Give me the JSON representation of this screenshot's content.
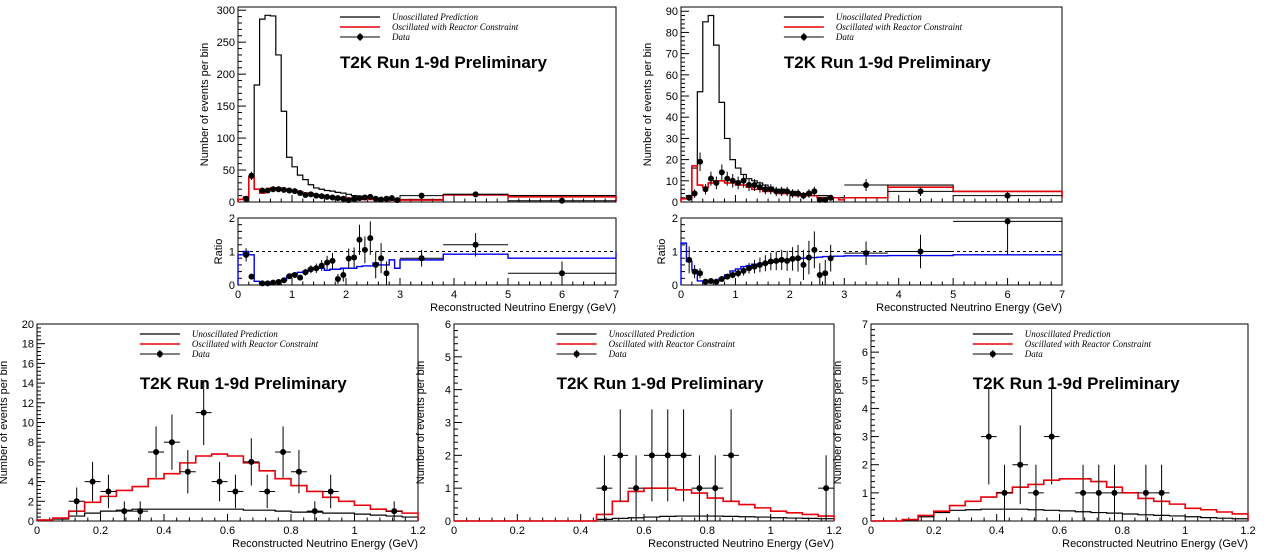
{
  "colors": {
    "unoscillated": "#000000",
    "oscillated": "#e8000b",
    "data": "#000000",
    "ratio_line": "#0000ee",
    "unity_line": "#000000"
  },
  "legend": {
    "unoscillated": "Unoscillated Prediction",
    "oscillated": "Oscillated with Reactor Constraint",
    "data": "Data"
  },
  "banner": "T2K Run 1-9d Preliminary",
  "chart_data": [
    {
      "type": "histogram",
      "xlabel": "",
      "ylabel": "Number of events per bin",
      "xlim": [
        0,
        7
      ],
      "ylim": [
        0,
        305
      ],
      "yticks": [
        0,
        50,
        100,
        150,
        200,
        250,
        300
      ],
      "xticks": [],
      "bin_edges": [
        0,
        0.1,
        0.2,
        0.3,
        0.4,
        0.5,
        0.6,
        0.7,
        0.8,
        0.9,
        1.0,
        1.1,
        1.2,
        1.3,
        1.4,
        1.5,
        1.6,
        1.7,
        1.8,
        1.9,
        2.0,
        2.1,
        2.2,
        2.3,
        2.4,
        2.5,
        2.6,
        2.7,
        2.8,
        2.9,
        3.0,
        3.8,
        5.0,
        7.0
      ],
      "unoscillated": [
        4,
        6,
        40,
        183,
        286,
        292,
        291,
        230,
        142,
        70,
        55,
        42,
        35,
        27,
        22,
        20,
        18,
        17,
        15,
        14,
        12,
        10,
        9,
        7,
        7,
        6,
        5,
        5,
        4,
        4,
        4,
        12,
        10,
        1
      ],
      "oscillated": [
        4,
        8,
        38,
        20,
        14,
        18,
        22,
        22,
        20,
        18,
        18,
        16,
        14,
        13,
        11,
        10,
        8,
        8,
        7,
        7,
        6,
        5,
        5,
        4,
        4,
        4,
        3,
        3,
        3,
        2,
        3,
        11,
        8,
        1
      ],
      "data": {
        "x": [
          0.15,
          0.25,
          0.45,
          0.55,
          0.65,
          0.75,
          0.85,
          0.95,
          1.05,
          1.15,
          1.25,
          1.35,
          1.45,
          1.55,
          1.65,
          1.75,
          1.85,
          1.95,
          2.05,
          2.15,
          2.25,
          2.35,
          2.45,
          2.55,
          2.65,
          2.75,
          2.85,
          2.95,
          3.4,
          4.4,
          6.0
        ],
        "y": [
          5,
          41,
          18,
          18,
          20,
          20,
          19,
          18,
          17,
          14,
          11,
          12,
          10,
          9,
          8,
          7,
          6,
          5,
          3,
          5,
          6,
          7,
          8,
          5,
          4,
          5,
          6,
          3,
          10,
          12,
          2
        ]
      }
    },
    {
      "type": "ratio",
      "xlabel": "Reconstructed Neutrino Energy (GeV)",
      "ylabel": "Ratio",
      "xlim": [
        0,
        7
      ],
      "ylim": [
        0,
        2
      ],
      "yticks": [
        0,
        1,
        2
      ],
      "xticks": [
        0,
        1,
        2,
        3,
        4,
        5,
        6,
        7
      ],
      "bin_edges": [
        0,
        0.1,
        0.2,
        0.3,
        0.4,
        0.5,
        0.6,
        0.7,
        0.8,
        0.9,
        1.0,
        1.1,
        1.2,
        1.3,
        1.4,
        1.5,
        1.6,
        1.7,
        1.8,
        1.9,
        2.0,
        2.1,
        2.2,
        2.3,
        2.4,
        2.5,
        2.6,
        2.7,
        2.8,
        2.9,
        3.0,
        3.8,
        5.0,
        7.0
      ],
      "ratio": [
        0.9,
        1.0,
        0.9,
        0.11,
        0.05,
        0.06,
        0.08,
        0.1,
        0.14,
        0.26,
        0.33,
        0.38,
        0.4,
        0.48,
        0.5,
        0.5,
        0.44,
        0.47,
        0.47,
        0.5,
        0.5,
        0.5,
        0.55,
        0.57,
        0.57,
        0.66,
        0.6,
        0.6,
        0.75,
        0.5,
        0.75,
        0.92,
        0.8,
        1.0
      ],
      "data": {
        "x": [
          0.15,
          0.25,
          0.45,
          0.55,
          0.65,
          0.75,
          0.85,
          0.95,
          1.05,
          1.15,
          1.25,
          1.35,
          1.45,
          1.55,
          1.65,
          1.75,
          1.85,
          1.95,
          2.05,
          2.15,
          2.25,
          2.35,
          2.45,
          2.55,
          2.65,
          2.75,
          3.4,
          4.4,
          6.0
        ],
        "y": [
          0.9,
          0.25,
          0.05,
          0.05,
          0.07,
          0.09,
          0.14,
          0.26,
          0.3,
          0.22,
          0.38,
          0.47,
          0.5,
          0.58,
          0.67,
          0.72,
          0.18,
          0.3,
          0.79,
          0.82,
          1.35,
          1.05,
          1.4,
          0.6,
          0.8,
          0.35,
          0.8,
          1.2,
          0.35
        ],
        "yerr": [
          0.2,
          0.05,
          0.02,
          0.02,
          0.02,
          0.03,
          0.04,
          0.05,
          0.07,
          0.08,
          0.1,
          0.12,
          0.14,
          0.16,
          0.2,
          0.24,
          0.15,
          0.2,
          0.3,
          0.3,
          0.45,
          0.4,
          0.5,
          0.4,
          0.45,
          0.35,
          0.25,
          0.35,
          0.35
        ]
      }
    },
    {
      "type": "histogram",
      "xlabel": "",
      "ylabel": "Number of events per bin",
      "xlim": [
        0,
        7
      ],
      "ylim": [
        0,
        92
      ],
      "yticks": [
        0,
        10,
        20,
        30,
        40,
        50,
        60,
        70,
        80,
        90
      ],
      "xticks": [],
      "bin_edges": [
        0,
        0.1,
        0.2,
        0.3,
        0.4,
        0.5,
        0.6,
        0.7,
        0.8,
        0.9,
        1.0,
        1.1,
        1.2,
        1.3,
        1.4,
        1.5,
        1.6,
        1.7,
        1.8,
        1.9,
        2.0,
        2.1,
        2.2,
        2.3,
        2.4,
        2.5,
        2.6,
        2.7,
        2.8,
        2.9,
        3.0,
        3.8,
        5.0,
        7.0
      ],
      "unoscillated": [
        1.5,
        3,
        16,
        52,
        85,
        88,
        74,
        47,
        30,
        20,
        16,
        13,
        11,
        10,
        9,
        8,
        7,
        6,
        6,
        5,
        5,
        4,
        4,
        4,
        3,
        3,
        3,
        2,
        2,
        2,
        2,
        8,
        5,
        2
      ],
      "oscillated": [
        1.5,
        2,
        17,
        8,
        7,
        9,
        10,
        10,
        9,
        9,
        8,
        8,
        7,
        6,
        6,
        5,
        5,
        5,
        4,
        4,
        4,
        3,
        3,
        3,
        3,
        2,
        2,
        2,
        2,
        1,
        2,
        7,
        5,
        2
      ],
      "data": {
        "x": [
          0.15,
          0.25,
          0.35,
          0.45,
          0.55,
          0.65,
          0.75,
          0.85,
          0.95,
          1.05,
          1.15,
          1.25,
          1.35,
          1.45,
          1.55,
          1.65,
          1.75,
          1.85,
          1.95,
          2.05,
          2.15,
          2.25,
          2.35,
          2.45,
          2.55,
          2.65,
          2.75,
          3.4,
          4.4,
          6.0
        ],
        "y": [
          2,
          4,
          19,
          6,
          11,
          9,
          14,
          11,
          10,
          9,
          10,
          8,
          8,
          7,
          6,
          6,
          5,
          5,
          5,
          4,
          4,
          3,
          4,
          5,
          1,
          1,
          2,
          8,
          5,
          3
        ],
        "yerr": [
          1.4,
          2,
          4.4,
          2.4,
          3.3,
          3,
          3.7,
          3.3,
          3.2,
          3,
          3.2,
          2.8,
          2.8,
          2.6,
          2.4,
          2.4,
          2.2,
          2.2,
          2.2,
          2,
          2,
          1.7,
          2,
          2.2,
          1,
          1,
          1.4,
          2.8,
          2.2,
          1.7
        ]
      }
    },
    {
      "type": "ratio",
      "xlabel": "Reconstructed Neutrino Energy (GeV)",
      "ylabel": "Ratio",
      "xlim": [
        0,
        7
      ],
      "ylim": [
        0,
        2
      ],
      "yticks": [
        0,
        1,
        2
      ],
      "xticks": [
        0,
        1,
        2,
        3,
        4,
        5,
        6,
        7
      ],
      "bin_edges": [
        0,
        0.1,
        0.2,
        0.3,
        0.4,
        0.5,
        0.6,
        0.7,
        0.8,
        0.9,
        1.0,
        1.1,
        1.2,
        1.3,
        1.4,
        1.5,
        1.6,
        1.7,
        1.8,
        1.9,
        2.0,
        2.1,
        2.2,
        2.3,
        2.4,
        2.5,
        2.6,
        2.7,
        2.8,
        2.9,
        3.0,
        3.8,
        5.0,
        7.0
      ],
      "ratio": [
        1.25,
        0.7,
        0.45,
        0.12,
        0.07,
        0.1,
        0.13,
        0.2,
        0.3,
        0.42,
        0.48,
        0.55,
        0.58,
        0.62,
        0.63,
        0.65,
        0.68,
        0.7,
        0.72,
        0.75,
        0.78,
        0.78,
        0.8,
        0.82,
        0.82,
        0.83,
        0.85,
        0.85,
        0.86,
        0.86,
        0.87,
        0.88,
        0.9,
        0.9
      ],
      "data": {
        "x": [
          0.15,
          0.25,
          0.35,
          0.45,
          0.55,
          0.65,
          0.75,
          0.85,
          0.95,
          1.05,
          1.15,
          1.25,
          1.35,
          1.45,
          1.55,
          1.65,
          1.75,
          1.85,
          1.95,
          2.05,
          2.15,
          2.25,
          2.35,
          2.45,
          2.55,
          2.65,
          2.75,
          3.4,
          4.4,
          6.0
        ],
        "y": [
          0.75,
          0.4,
          0.35,
          0.1,
          0.12,
          0.1,
          0.18,
          0.25,
          0.3,
          0.35,
          0.42,
          0.5,
          0.55,
          0.6,
          0.65,
          0.7,
          0.72,
          0.75,
          0.72,
          0.78,
          0.8,
          0.6,
          0.82,
          1.05,
          0.3,
          0.35,
          0.8,
          0.95,
          1.0,
          1.9
        ],
        "yerr": [
          0.4,
          0.2,
          0.15,
          0.05,
          0.05,
          0.05,
          0.06,
          0.08,
          0.1,
          0.12,
          0.14,
          0.16,
          0.2,
          0.22,
          0.24,
          0.26,
          0.28,
          0.3,
          0.3,
          0.35,
          0.4,
          0.45,
          0.5,
          0.55,
          0.35,
          0.4,
          0.4,
          0.35,
          0.5,
          1.0
        ]
      }
    },
    {
      "type": "histogram",
      "xlabel": "Reconstructed Neutrino Energy (GeV)",
      "ylabel": "Number of events per bin",
      "xlim": [
        0,
        1.2
      ],
      "ylim": [
        0,
        20
      ],
      "yticks": [
        0,
        2,
        4,
        6,
        8,
        10,
        12,
        14,
        16,
        18,
        20
      ],
      "xticks": [
        0,
        0.2,
        0.4,
        0.6,
        0.8,
        1,
        1.2
      ],
      "bin_edges": [
        0,
        0.05,
        0.1,
        0.15,
        0.2,
        0.25,
        0.3,
        0.35,
        0.4,
        0.45,
        0.5,
        0.55,
        0.6,
        0.65,
        0.7,
        0.75,
        0.8,
        0.85,
        0.9,
        0.95,
        1.0,
        1.05,
        1.1,
        1.15,
        1.2
      ],
      "unoscillated": [
        0.1,
        0.2,
        0.5,
        0.8,
        1.0,
        1.1,
        1.2,
        1.2,
        1.2,
        1.2,
        1.2,
        1.2,
        1.2,
        1.1,
        1.1,
        1.0,
        0.9,
        0.9,
        0.8,
        0.8,
        0.7,
        0.6,
        0.5,
        0.4
      ],
      "oscillated": [
        0.1,
        0.3,
        1.0,
        1.9,
        2.5,
        3.1,
        3.5,
        4.3,
        4.8,
        5.9,
        6.6,
        6.8,
        6.6,
        5.9,
        5.1,
        4.3,
        3.6,
        3.0,
        2.4,
        2.0,
        1.6,
        1.2,
        1.0,
        0.8
      ],
      "data": {
        "x": [
          0.125,
          0.175,
          0.225,
          0.275,
          0.325,
          0.375,
          0.425,
          0.475,
          0.525,
          0.575,
          0.625,
          0.675,
          0.725,
          0.775,
          0.825,
          0.875,
          0.925,
          1.125
        ],
        "y": [
          2,
          4,
          3,
          1,
          1,
          7,
          8,
          5,
          11,
          4,
          3,
          6,
          3,
          7,
          5,
          1,
          3,
          1
        ],
        "xerr": 0.025,
        "yerr": [
          1.4,
          2,
          1.7,
          1,
          1,
          2.6,
          2.8,
          2.2,
          3.3,
          2,
          1.7,
          2.4,
          1.7,
          2.6,
          2.2,
          1,
          1.7,
          1
        ]
      }
    },
    {
      "type": "histogram",
      "xlabel": "Reconstructed Neutrino Energy (GeV)",
      "ylabel": "Number of events per bin",
      "xlim": [
        0,
        1.2
      ],
      "ylim": [
        0,
        6
      ],
      "yticks": [
        0,
        1,
        2,
        3,
        4,
        5,
        6
      ],
      "xticks": [
        0,
        0.2,
        0.4,
        0.6,
        0.8,
        1,
        1.2
      ],
      "bin_edges": [
        0,
        0.05,
        0.1,
        0.15,
        0.2,
        0.25,
        0.3,
        0.35,
        0.4,
        0.45,
        0.5,
        0.55,
        0.6,
        0.65,
        0.7,
        0.75,
        0.8,
        0.85,
        0.9,
        0.95,
        1.0,
        1.05,
        1.1,
        1.15,
        1.2
      ],
      "unoscillated": [
        0,
        0,
        0,
        0,
        0,
        0,
        0,
        0,
        0,
        0.05,
        0.08,
        0.1,
        0.12,
        0.14,
        0.15,
        0.15,
        0.15,
        0.14,
        0.13,
        0.12,
        0.1,
        0.09,
        0.08,
        0.07
      ],
      "oscillated": [
        0,
        0,
        0,
        0,
        0,
        0,
        0,
        0,
        0,
        0.2,
        0.6,
        0.9,
        1.0,
        1.0,
        0.95,
        0.85,
        0.7,
        0.6,
        0.5,
        0.4,
        0.3,
        0.25,
        0.2,
        0.15
      ],
      "data": {
        "x": [
          0.475,
          0.525,
          0.575,
          0.625,
          0.675,
          0.725,
          0.775,
          0.825,
          0.875,
          1.175
        ],
        "y": [
          1,
          2,
          1,
          2,
          2,
          2,
          1,
          1,
          2,
          1
        ],
        "xerr": 0.025,
        "yerr": [
          1,
          1.4,
          1,
          1.4,
          1.4,
          1.4,
          1,
          1,
          1.4,
          1
        ]
      }
    },
    {
      "type": "histogram",
      "xlabel": "Reconstructed Neutrino Energy (GeV)",
      "ylabel": "Number of events per bin",
      "xlim": [
        0,
        1.2
      ],
      "ylim": [
        0,
        7
      ],
      "yticks": [
        0,
        1,
        2,
        3,
        4,
        5,
        6,
        7
      ],
      "xticks": [
        0,
        0.2,
        0.4,
        0.6,
        0.8,
        1,
        1.2
      ],
      "bin_edges": [
        0,
        0.05,
        0.1,
        0.15,
        0.2,
        0.25,
        0.3,
        0.35,
        0.4,
        0.45,
        0.5,
        0.55,
        0.6,
        0.65,
        0.7,
        0.75,
        0.8,
        0.85,
        0.9,
        0.95,
        1.0,
        1.05,
        1.1,
        1.15,
        1.2
      ],
      "unoscillated": [
        0,
        0,
        0.05,
        0.15,
        0.3,
        0.38,
        0.4,
        0.42,
        0.42,
        0.42,
        0.4,
        0.38,
        0.36,
        0.33,
        0.3,
        0.28,
        0.25,
        0.22,
        0.2,
        0.18,
        0.15,
        0.12,
        0.1,
        0.08
      ],
      "oscillated": [
        0,
        0,
        0.05,
        0.2,
        0.35,
        0.55,
        0.7,
        0.85,
        1.0,
        1.2,
        1.3,
        1.45,
        1.5,
        1.5,
        1.4,
        1.2,
        1.0,
        0.8,
        0.7,
        0.6,
        0.45,
        0.4,
        0.32,
        0.25
      ],
      "data": {
        "x": [
          0.375,
          0.425,
          0.475,
          0.525,
          0.575,
          0.675,
          0.725,
          0.775,
          0.875,
          0.925
        ],
        "y": [
          3,
          1,
          2,
          1,
          3,
          1,
          1,
          1,
          1,
          1
        ],
        "xerr": 0.025,
        "yerr": [
          1.7,
          1,
          1.4,
          1,
          1.7,
          1,
          1,
          1,
          1,
          1
        ]
      }
    }
  ]
}
